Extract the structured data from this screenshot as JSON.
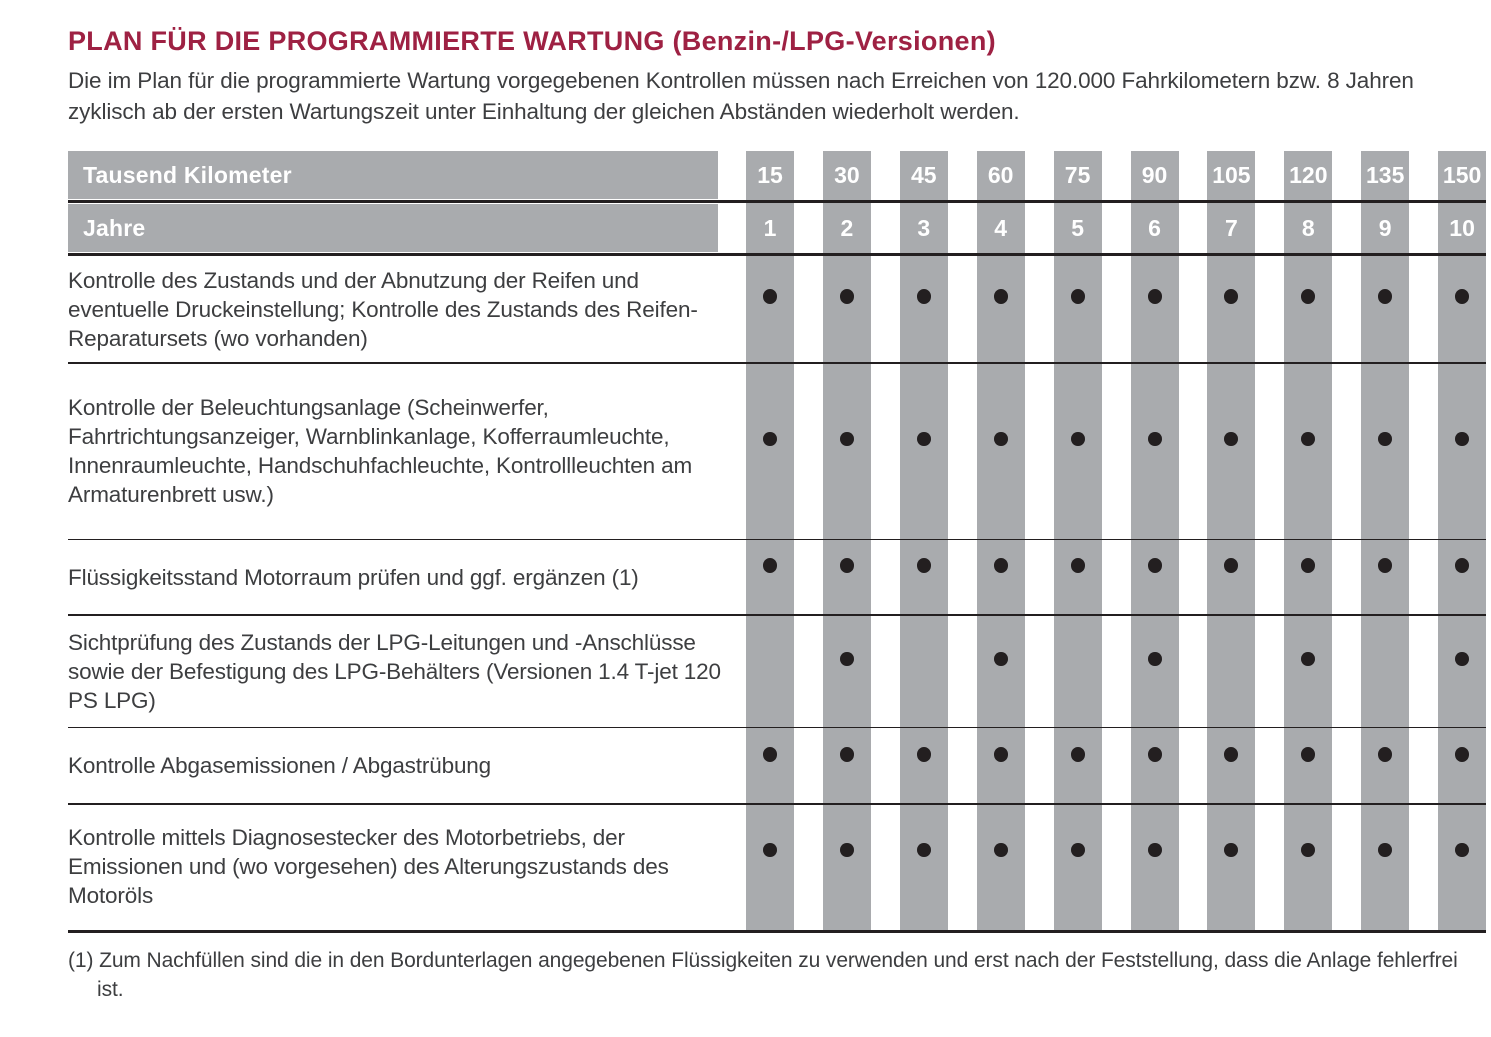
{
  "title": "PLAN FÜR DIE PROGRAMMIERTE WARTUNG (Benzin-/LPG-Versionen)",
  "intro": "Die im Plan für die programmierte Wartung vorgegebenen Kontrollen müssen nach Erreichen von 120.000 Fahrkilometern bzw. 8 Jahren zyklisch ab der ersten Wartungszeit unter Einhaltung der gleichen Abständen wiederholt werden.",
  "colors": {
    "accent": "#9e2143",
    "band_gray": "#a9abae",
    "header_text": "#ffffff",
    "body_text": "#3d3e40",
    "dot": "#231f20",
    "line": "#231f20"
  },
  "table": {
    "km_label": "Tausend Kilometer",
    "km_values": [
      "15",
      "30",
      "45",
      "60",
      "75",
      "90",
      "105",
      "120",
      "135",
      "150"
    ],
    "years_label": "Jahre",
    "years_values": [
      "1",
      "2",
      "3",
      "4",
      "5",
      "6",
      "7",
      "8",
      "9",
      "10"
    ],
    "rows": [
      {
        "task": "Kontrolle des Zustands und der Abnutzung der Reifen und eventuelle Druckeinstellung; Kontrolle des Zustands des Reifen-Reparatursets (wo vorhanden)",
        "dots": [
          1,
          1,
          1,
          1,
          1,
          1,
          1,
          1,
          1,
          1
        ]
      },
      {
        "task": "Kontrolle der Beleuchtungsanlage (Scheinwerfer, Fahrtrichtungsanzeiger, Warnblinkanlage, Kofferraumleuchte, Innenraumleuchte, Handschuhfachleuchte, Kontrollleuchten am Armaturenbrett usw.)",
        "dots": [
          1,
          1,
          1,
          1,
          1,
          1,
          1,
          1,
          1,
          1
        ]
      },
      {
        "task": "Flüssigkeitsstand Motorraum prüfen und ggf. ergänzen (1)",
        "dots": [
          1,
          1,
          1,
          1,
          1,
          1,
          1,
          1,
          1,
          1
        ]
      },
      {
        "task": "Sichtprüfung des Zustands der LPG-Leitungen und -Anschlüsse sowie der Befestigung des LPG-Behälters (Versionen 1.4 T-jet 120 PS LPG)",
        "dots": [
          0,
          1,
          0,
          1,
          0,
          1,
          0,
          1,
          0,
          1
        ]
      },
      {
        "task": "Kontrolle Abgasemissionen / Abgastrübung",
        "dots": [
          1,
          1,
          1,
          1,
          1,
          1,
          1,
          1,
          1,
          1
        ]
      },
      {
        "task": "Kontrolle mittels Diagnosestecker des Motorbetriebs, der Emissionen und (wo vorgesehen) des Alterungszustands des Motoröls",
        "dots": [
          1,
          1,
          1,
          1,
          1,
          1,
          1,
          1,
          1,
          1
        ]
      }
    ]
  },
  "footnote": "(1) Zum Nachfüllen sind die in den Bordunterlagen angegebenen Flüssigkeiten zu verwenden und erst nach der Feststellung, dass die Anlage fehlerfrei ist."
}
